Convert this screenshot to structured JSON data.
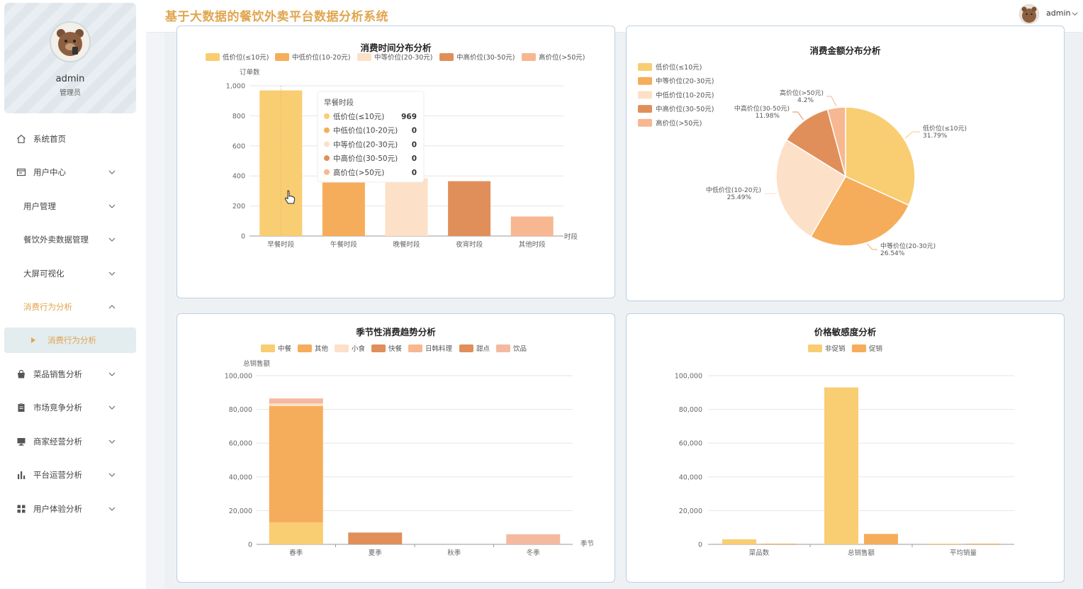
{
  "header": {
    "title": "基于大数据的餐饮外卖平台数据分析系统",
    "user": "admin"
  },
  "profile": {
    "name": "admin",
    "role": "管理员"
  },
  "sidebar": {
    "items": [
      {
        "label": "系统首页",
        "icon": "home-icon"
      },
      {
        "label": "用户中心",
        "icon": "id-card-icon"
      },
      {
        "label": "用户管理"
      },
      {
        "label": "餐饮外卖数据管理"
      },
      {
        "label": "大屏可视化"
      },
      {
        "label": "消费行为分析"
      },
      {
        "label": "消费行为分析"
      },
      {
        "label": "菜品销售分析",
        "icon": "bag-icon"
      },
      {
        "label": "市场竞争分析",
        "icon": "clipboard-icon"
      },
      {
        "label": "商家经营分析",
        "icon": "monitor-icon"
      },
      {
        "label": "平台运营分析",
        "icon": "bar-chart-icon"
      },
      {
        "label": "用户体验分析",
        "icon": "grid-icon"
      }
    ]
  },
  "colors": {
    "accent": "#e0a54f",
    "c1": "#f9cd72",
    "c2": "#f6ad5b",
    "c3": "#fde0c8",
    "c4": "#e08f5b",
    "c5": "#f7b790",
    "c6": "#f4b9a0"
  },
  "chart_data": [
    {
      "type": "bar",
      "title": "消费时间分布分析",
      "ylabel": "订单数",
      "xlabel": "时段",
      "ylim": [
        0,
        1000
      ],
      "yticks": [
        "1,000",
        "800",
        "600",
        "400",
        "200",
        "0"
      ],
      "legend": [
        "低价位(≤10元)",
        "中低价位(10-20元)",
        "中等价位(20-30元)",
        "中高价位(30-50元)",
        "高价位(>50元)"
      ],
      "categories": [
        "早餐时段",
        "午餐时段",
        "晚餐时段",
        "夜宵时段",
        "其他时段"
      ],
      "values": [
        969,
        390,
        385,
        365,
        130
      ],
      "tooltip": {
        "title": "早餐时段",
        "rows": [
          {
            "name": "低价位(≤10元)",
            "value": "969"
          },
          {
            "name": "中低价位(10-20元)",
            "value": "0"
          },
          {
            "name": "中等价位(20-30元)",
            "value": "0"
          },
          {
            "name": "中高价位(30-50元)",
            "value": "0"
          },
          {
            "name": "高价位(>50元)",
            "value": "0"
          }
        ]
      }
    },
    {
      "type": "pie",
      "title": "消费金额分布分析",
      "legend": [
        "低价位(≤10元)",
        "中等价位(20-30元)",
        "中低价位(10-20元)",
        "中高价位(30-50元)",
        "高价位(>50元)"
      ],
      "slices": [
        {
          "name": "低价位(≤10元)",
          "value": 31.79,
          "label": "31.79%"
        },
        {
          "name": "中等价位(20-30元)",
          "value": 26.54,
          "label": "26.54%"
        },
        {
          "name": "中低价位(10-20元)",
          "value": 25.49,
          "label": "25.49%"
        },
        {
          "name": "中高价位(30-50元)",
          "value": 11.98,
          "label": "11.98%"
        },
        {
          "name": "高价位(>50元)",
          "value": 4.2,
          "label": "4.2%"
        }
      ]
    },
    {
      "type": "bar",
      "title": "季节性消费趋势分析",
      "ylabel": "总销售额",
      "xlabel": "季节",
      "ylim": [
        0,
        100000
      ],
      "yticks": [
        "100,000",
        "80,000",
        "60,000",
        "40,000",
        "20,000",
        "0"
      ],
      "legend": [
        "中餐",
        "其他",
        "小食",
        "快餐",
        "日韩料理",
        "甜点",
        "饮品"
      ],
      "categories": [
        "春季",
        "夏季",
        "秋季",
        "冬季"
      ],
      "series": [
        {
          "name": "中餐",
          "values": [
            13000,
            0,
            0,
            0
          ]
        },
        {
          "name": "其他",
          "values": [
            69000,
            0,
            0,
            0
          ]
        },
        {
          "name": "小食",
          "values": [
            1500,
            0,
            0,
            0
          ]
        },
        {
          "name": "快餐",
          "values": [
            0,
            7000,
            0,
            0
          ]
        },
        {
          "name": "日韩料理",
          "values": [
            0,
            0,
            0,
            0
          ]
        },
        {
          "name": "甜点",
          "values": [
            0,
            0,
            0,
            0
          ]
        },
        {
          "name": "饮品",
          "values": [
            3000,
            0,
            0,
            6000
          ]
        }
      ]
    },
    {
      "type": "bar",
      "title": "价格敏感度分析",
      "ylim": [
        0,
        100000
      ],
      "yticks": [
        "100,000",
        "80,000",
        "60,000",
        "40,000",
        "20,000",
        "0"
      ],
      "legend": [
        "非促销",
        "促销"
      ],
      "categories": [
        "菜品数",
        "总销售额",
        "平均销量"
      ],
      "series": [
        {
          "name": "非促销",
          "values": [
            3000,
            93000,
            150
          ]
        },
        {
          "name": "促销",
          "values": [
            200,
            6200,
            80
          ]
        }
      ]
    }
  ]
}
